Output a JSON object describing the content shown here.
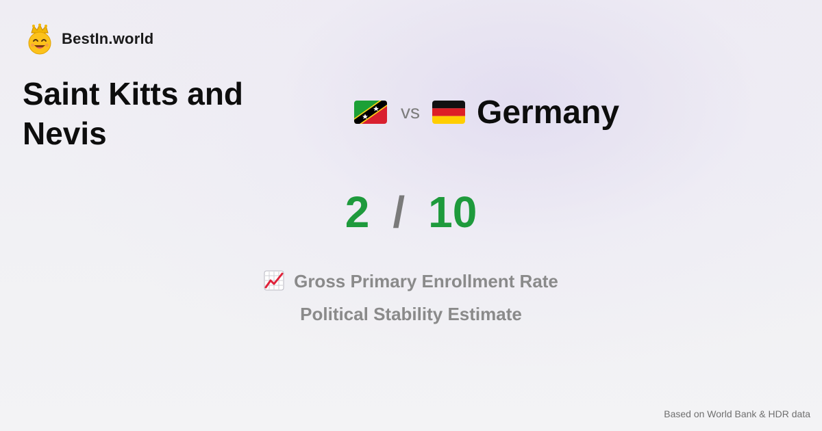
{
  "brand": {
    "name": "BestIn.world",
    "logo_icon": "crowned-smiley-icon"
  },
  "comparison": {
    "country_a": {
      "name": "Saint Kitts and Nevis",
      "flag_icon": "flag-saint-kitts-and-nevis-icon"
    },
    "vs_label": "vs",
    "country_b": {
      "name": "Germany",
      "flag_icon": "flag-germany-icon"
    }
  },
  "score": {
    "a": "2",
    "separator": "/",
    "b": "10"
  },
  "metrics": [
    {
      "label": "Gross Primary Enrollment Rate",
      "icon": "chart-increasing-icon"
    },
    {
      "label": "Political Stability Estimate"
    }
  ],
  "footer": {
    "source": "Based on World Bank & HDR data"
  },
  "colors": {
    "score": "#1e9a3c",
    "separator": "#7a7a7a",
    "metric_text": "#8a8a8a"
  }
}
